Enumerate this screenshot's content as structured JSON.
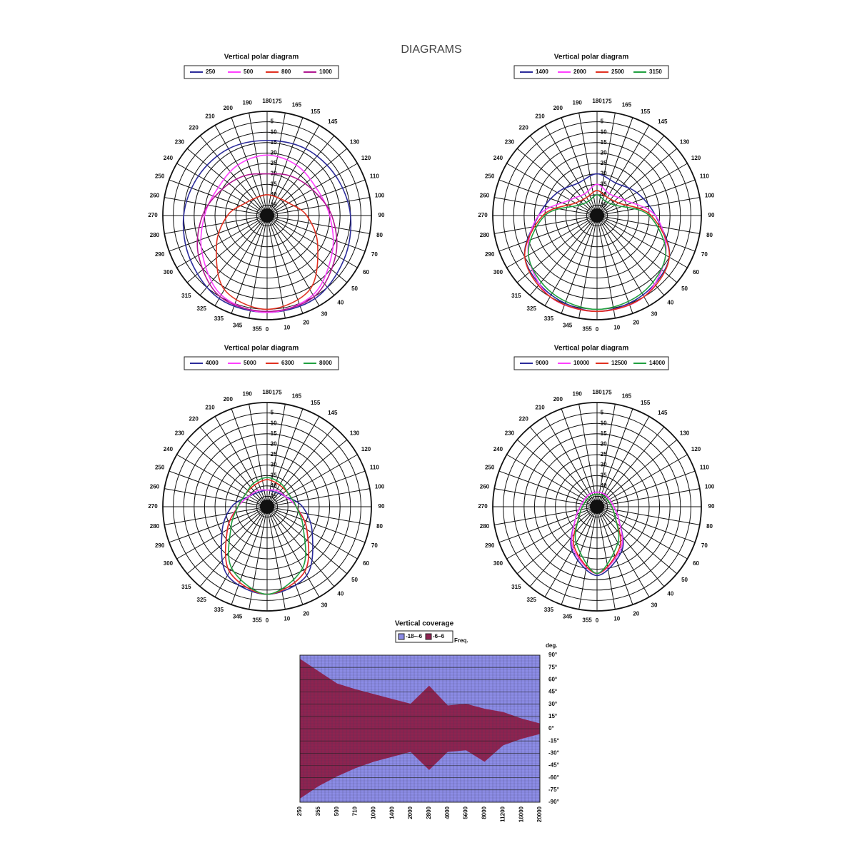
{
  "title": "DIAGRAMS",
  "chart_data": [
    {
      "type": "polar",
      "title": "Vertical polar diagram",
      "rlim": [
        -50,
        0
      ],
      "rticks": [
        -45,
        -40,
        -35,
        -30,
        -25,
        -20,
        -15,
        -10,
        -5,
        0
      ],
      "thetaticks": [
        180,
        175,
        165,
        155,
        145,
        130,
        120,
        110,
        100,
        90,
        80,
        70,
        60,
        50,
        40,
        30,
        20,
        10,
        0,
        355,
        345,
        335,
        325,
        315,
        300,
        290,
        280,
        270,
        260,
        250,
        240,
        230,
        220,
        210,
        200,
        190
      ],
      "theta": [
        0,
        30,
        60,
        90,
        120,
        150,
        180,
        210,
        240,
        270,
        300,
        330
      ],
      "series": [
        {
          "name": "250",
          "color": "#2b2b9a",
          "values": [
            -3.5,
            -4,
            -7.5,
            -10,
            -12,
            -13,
            -14,
            -13,
            -12,
            -10,
            -7.5,
            -4
          ]
        },
        {
          "name": "500",
          "color": "#ff40ff",
          "values": [
            -3.5,
            -6,
            -14,
            -20,
            -23,
            -22,
            -21,
            -22,
            -23,
            -20,
            -14,
            -6
          ]
        },
        {
          "name": "800",
          "color": "#e03020",
          "values": [
            -5,
            -9,
            -22,
            -31,
            -38,
            -40,
            -40,
            -40,
            -38,
            -31,
            -22,
            -9
          ]
        },
        {
          "name": "1000",
          "color": "#b01890",
          "values": [
            -4,
            -5,
            -12,
            -19,
            -25,
            -28,
            -30,
            -28,
            -25,
            -19,
            -12,
            -5
          ]
        }
      ]
    },
    {
      "type": "polar",
      "title": "Vertical polar diagram",
      "rlim": [
        -50,
        0
      ],
      "rticks": [
        -45,
        -40,
        -35,
        -30,
        -25,
        -20,
        -15,
        -10,
        -5,
        0
      ],
      "thetaticks": [
        180,
        175,
        165,
        155,
        145,
        130,
        120,
        110,
        100,
        90,
        80,
        70,
        60,
        50,
        40,
        30,
        20,
        10,
        0,
        355,
        345,
        335,
        325,
        315,
        300,
        290,
        280,
        270,
        260,
        250,
        240,
        230,
        220,
        210,
        200,
        190
      ],
      "theta": [
        0,
        30,
        60,
        90,
        120,
        150,
        180,
        210,
        240,
        270,
        300,
        330
      ],
      "series": [
        {
          "name": "1400",
          "color": "#2b2b9a",
          "values": [
            -4,
            -6,
            -10,
            -22,
            -28,
            -32,
            -30,
            -32,
            -28,
            -22,
            -10,
            -6
          ]
        },
        {
          "name": "2000",
          "color": "#ff40ff",
          "values": [
            -4,
            -5,
            -12,
            -22,
            -35,
            -38,
            -35,
            -38,
            -35,
            -22,
            -12,
            -5
          ]
        },
        {
          "name": "2500",
          "color": "#e03020",
          "values": [
            -4,
            -5,
            -10,
            -24,
            -38,
            -40,
            -38,
            -40,
            -38,
            -24,
            -10,
            -5
          ]
        },
        {
          "name": "3150",
          "color": "#20a040",
          "values": [
            -5,
            -7,
            -12,
            -25,
            -40,
            -42,
            -40,
            -42,
            -40,
            -25,
            -12,
            -7
          ]
        }
      ]
    },
    {
      "type": "polar",
      "title": "Vertical polar diagram",
      "rlim": [
        -50,
        0
      ],
      "rticks": [
        -45,
        -40,
        -35,
        -30,
        -25,
        -20,
        -15,
        -10,
        -5,
        0
      ],
      "thetaticks": [
        180,
        175,
        165,
        155,
        145,
        130,
        120,
        110,
        100,
        90,
        80,
        70,
        60,
        50,
        40,
        30,
        20,
        10,
        0,
        355,
        345,
        335,
        325,
        315,
        300,
        290,
        280,
        270,
        260,
        250,
        240,
        230,
        220,
        210,
        200,
        190
      ],
      "theta": [
        0,
        30,
        60,
        90,
        120,
        150,
        180,
        210,
        240,
        270,
        300,
        330
      ],
      "series": [
        {
          "name": "4000",
          "color": "#2b2b9a",
          "values": [
            -8,
            -12,
            -25,
            -33,
            -40,
            -42,
            -42,
            -42,
            -40,
            -33,
            -25,
            -12
          ]
        },
        {
          "name": "5000",
          "color": "#ff40ff",
          "values": [
            -8,
            -14,
            -28,
            -36,
            -40,
            -41,
            -42,
            -41,
            -40,
            -36,
            -28,
            -14
          ]
        },
        {
          "name": "6300",
          "color": "#e03020",
          "values": [
            -8,
            -14,
            -28,
            -36,
            -38,
            -38,
            -37,
            -38,
            -38,
            -36,
            -28,
            -14
          ]
        },
        {
          "name": "8000",
          "color": "#20a040",
          "values": [
            -8,
            -16,
            -30,
            -36,
            -38,
            -37,
            -36,
            -37,
            -38,
            -36,
            -30,
            -16
          ]
        }
      ]
    },
    {
      "type": "polar",
      "title": "Vertical polar diagram",
      "rlim": [
        -50,
        0
      ],
      "rticks": [
        -45,
        -40,
        -35,
        -30,
        -25,
        -20,
        -15,
        -10,
        -5,
        0
      ],
      "thetaticks": [
        180,
        175,
        165,
        155,
        145,
        130,
        120,
        110,
        100,
        90,
        80,
        70,
        60,
        50,
        40,
        30,
        20,
        10,
        0,
        355,
        345,
        335,
        325,
        315,
        300,
        290,
        280,
        270,
        260,
        250,
        240,
        230,
        220,
        210,
        200,
        190
      ],
      "theta": [
        0,
        30,
        60,
        90,
        120,
        150,
        180,
        210,
        240,
        270,
        300,
        330
      ],
      "series": [
        {
          "name": "9000",
          "color": "#2b2b9a",
          "values": [
            -17,
            -26,
            -38,
            -42,
            -43,
            -43,
            -43,
            -43,
            -43,
            -42,
            -38,
            -26
          ]
        },
        {
          "name": "10000",
          "color": "#ff40ff",
          "values": [
            -18,
            -27,
            -38,
            -42,
            -43,
            -43,
            -43,
            -43,
            -43,
            -42,
            -38,
            -27
          ]
        },
        {
          "name": "12500",
          "color": "#e03020",
          "values": [
            -18,
            -28,
            -40,
            -43,
            -44,
            -44,
            -44,
            -44,
            -44,
            -43,
            -40,
            -28
          ]
        },
        {
          "name": "14000",
          "color": "#20a040",
          "values": [
            -18,
            -30,
            -40,
            -43,
            -44,
            -44,
            -44,
            -44,
            -44,
            -43,
            -40,
            -30
          ]
        }
      ]
    },
    {
      "type": "range",
      "title": "Vertical coverage",
      "xlabel": "Freq.",
      "ylabel": "deg.",
      "legend": [
        {
          "name": "-18–-6",
          "color": "#8c8ce6"
        },
        {
          "name": "-6–6",
          "color": "#8e2350"
        }
      ],
      "categories": [
        "250",
        "355",
        "500",
        "710",
        "1000",
        "1400",
        "2000",
        "2800",
        "4000",
        "5600",
        "8000",
        "11200",
        "16000",
        "20000"
      ],
      "ylim": [
        -90,
        90
      ],
      "yticks": [
        {
          "value": 90,
          "label": "90°"
        },
        {
          "value": 75,
          "label": "75°"
        },
        {
          "value": 60,
          "label": "60°"
        },
        {
          "value": 45,
          "label": "45°"
        },
        {
          "value": 30,
          "label": "30°"
        },
        {
          "value": 15,
          "label": "15°"
        },
        {
          "value": 0,
          "label": "0°"
        },
        {
          "value": -15,
          "label": "-15°"
        },
        {
          "value": -30,
          "label": "-30°"
        },
        {
          "value": -45,
          "label": "-45°"
        },
        {
          "value": -60,
          "label": "-60°"
        },
        {
          "value": -75,
          "label": "-75°"
        },
        {
          "value": -90,
          "label": "-90°"
        }
      ],
      "series": [
        {
          "values": [
            85,
            70,
            55,
            48,
            42,
            36,
            30,
            52,
            28,
            30,
            24,
            20,
            12,
            6
          ]
        },
        {
          "values": [
            -85,
            -70,
            -58,
            -48,
            -40,
            -34,
            -28,
            -50,
            -28,
            -26,
            -40,
            -20,
            -12,
            -6
          ]
        }
      ]
    }
  ]
}
